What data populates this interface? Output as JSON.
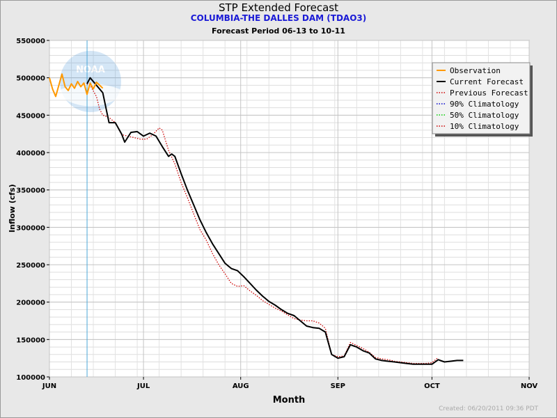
{
  "chart_data": {
    "type": "line",
    "title": "STP Extended Forecast",
    "subtitle": "COLUMBIA-THE DALLES DAM (TDAO3)",
    "period": "Forecast Period 06-13 to 10-11",
    "xlabel": "Month",
    "ylabel": "Inflow (cfs)",
    "ylim": [
      100000,
      550000
    ],
    "yticks": [
      100000,
      150000,
      200000,
      250000,
      300000,
      350000,
      400000,
      450000,
      500000,
      550000
    ],
    "xticks": [
      {
        "label": "JUN",
        "date": "06-01"
      },
      {
        "label": "JUL",
        "date": "07-01"
      },
      {
        "label": "AUG",
        "date": "08-01"
      },
      {
        "label": "SEP",
        "date": "09-01"
      },
      {
        "label": "OCT",
        "date": "10-01"
      },
      {
        "label": "NOV",
        "date": "11-01"
      }
    ],
    "xlim": [
      "06-01",
      "11-01"
    ],
    "grid": true,
    "current_date_marker": "06-13",
    "legend_position": "top-right",
    "series": [
      {
        "name": "Observation",
        "color": "#ff9900",
        "style": "solid",
        "points": [
          [
            "06-01",
            500000
          ],
          [
            "06-02",
            485000
          ],
          [
            "06-03",
            475000
          ],
          [
            "06-04",
            490000
          ],
          [
            "06-05",
            505000
          ],
          [
            "06-06",
            488000
          ],
          [
            "06-07",
            483000
          ],
          [
            "06-08",
            492000
          ],
          [
            "06-09",
            486000
          ],
          [
            "06-10",
            495000
          ],
          [
            "06-11",
            488000
          ],
          [
            "06-12",
            493000
          ],
          [
            "06-13",
            478000
          ],
          [
            "06-14",
            493000
          ],
          [
            "06-15",
            485000
          ],
          [
            "06-16",
            494000
          ],
          [
            "06-17",
            490000
          ],
          [
            "06-18",
            486000
          ]
        ]
      },
      {
        "name": "Current Forecast",
        "color": "#000000",
        "style": "solid",
        "points": [
          [
            "06-13",
            492000
          ],
          [
            "06-14",
            500000
          ],
          [
            "06-16",
            490000
          ],
          [
            "06-18",
            480000
          ],
          [
            "06-20",
            440000
          ],
          [
            "06-22",
            440000
          ],
          [
            "06-24",
            425000
          ],
          [
            "06-25",
            414000
          ],
          [
            "06-27",
            427000
          ],
          [
            "06-29",
            428000
          ],
          [
            "07-01",
            422000
          ],
          [
            "07-03",
            426000
          ],
          [
            "07-05",
            422000
          ],
          [
            "07-07",
            408000
          ],
          [
            "07-09",
            395000
          ],
          [
            "07-10",
            398000
          ],
          [
            "07-11",
            395000
          ],
          [
            "07-13",
            372000
          ],
          [
            "07-15",
            350000
          ],
          [
            "07-17",
            330000
          ],
          [
            "07-19",
            310000
          ],
          [
            "07-21",
            293000
          ],
          [
            "07-23",
            278000
          ],
          [
            "07-25",
            265000
          ],
          [
            "07-27",
            252000
          ],
          [
            "07-29",
            245000
          ],
          [
            "07-31",
            242000
          ],
          [
            "08-02",
            234000
          ],
          [
            "08-04",
            225000
          ],
          [
            "08-06",
            216000
          ],
          [
            "08-08",
            208000
          ],
          [
            "08-10",
            201000
          ],
          [
            "08-12",
            196000
          ],
          [
            "08-14",
            190000
          ],
          [
            "08-16",
            185000
          ],
          [
            "08-18",
            182000
          ],
          [
            "08-20",
            175000
          ],
          [
            "08-22",
            168000
          ],
          [
            "08-24",
            166000
          ],
          [
            "08-26",
            165000
          ],
          [
            "08-28",
            160000
          ],
          [
            "08-30",
            130000
          ],
          [
            "09-01",
            125000
          ],
          [
            "09-03",
            127000
          ],
          [
            "09-05",
            143000
          ],
          [
            "09-07",
            140000
          ],
          [
            "09-09",
            135000
          ],
          [
            "09-11",
            132000
          ],
          [
            "09-13",
            124000
          ],
          [
            "09-15",
            122000
          ],
          [
            "09-17",
            121000
          ],
          [
            "09-19",
            120000
          ],
          [
            "09-21",
            119000
          ],
          [
            "09-23",
            118000
          ],
          [
            "09-25",
            117000
          ],
          [
            "09-27",
            117000
          ],
          [
            "09-29",
            117000
          ],
          [
            "10-01",
            117000
          ],
          [
            "10-03",
            123000
          ],
          [
            "10-05",
            120000
          ],
          [
            "10-07",
            121000
          ],
          [
            "10-09",
            122000
          ],
          [
            "10-11",
            122000
          ]
        ]
      },
      {
        "name": "Previous Forecast",
        "color": "#cc0000",
        "style": "dotted",
        "points": [
          [
            "06-13",
            492000
          ],
          [
            "06-14",
            490000
          ],
          [
            "06-16",
            475000
          ],
          [
            "06-17",
            458000
          ],
          [
            "06-18",
            450000
          ],
          [
            "06-20",
            447000
          ],
          [
            "06-22",
            440000
          ],
          [
            "06-24",
            424000
          ],
          [
            "06-26",
            422000
          ],
          [
            "06-28",
            420000
          ],
          [
            "06-30",
            418000
          ],
          [
            "07-02",
            418000
          ],
          [
            "07-04",
            424000
          ],
          [
            "07-06",
            433000
          ],
          [
            "07-07",
            430000
          ],
          [
            "07-09",
            403000
          ],
          [
            "07-11",
            385000
          ],
          [
            "07-13",
            360000
          ],
          [
            "07-15",
            340000
          ],
          [
            "07-17",
            318000
          ],
          [
            "07-19",
            297000
          ],
          [
            "07-21",
            283000
          ],
          [
            "07-23",
            265000
          ],
          [
            "07-25",
            250000
          ],
          [
            "07-27",
            238000
          ],
          [
            "07-29",
            225000
          ],
          [
            "07-31",
            221000
          ],
          [
            "08-02",
            222000
          ],
          [
            "08-04",
            215000
          ],
          [
            "08-06",
            209000
          ],
          [
            "08-08",
            202000
          ],
          [
            "08-10",
            197000
          ],
          [
            "08-12",
            192000
          ],
          [
            "08-14",
            188000
          ],
          [
            "08-16",
            183000
          ],
          [
            "08-18",
            178000
          ],
          [
            "08-20",
            176000
          ],
          [
            "08-22",
            175000
          ],
          [
            "08-24",
            175000
          ],
          [
            "08-26",
            172000
          ],
          [
            "08-28",
            165000
          ],
          [
            "08-30",
            130000
          ],
          [
            "09-01",
            127000
          ],
          [
            "09-03",
            128000
          ],
          [
            "09-05",
            146000
          ],
          [
            "09-07",
            142000
          ],
          [
            "09-09",
            138000
          ],
          [
            "09-11",
            133000
          ],
          [
            "09-13",
            126000
          ],
          [
            "09-15",
            124000
          ],
          [
            "09-17",
            123000
          ],
          [
            "09-19",
            121000
          ],
          [
            "09-21",
            120000
          ],
          [
            "09-23",
            119000
          ],
          [
            "09-25",
            118000
          ],
          [
            "09-27",
            118000
          ],
          [
            "09-29",
            118000
          ],
          [
            "10-01",
            119000
          ],
          [
            "10-03",
            126000
          ]
        ]
      },
      {
        "name": "90% Climatology",
        "color": "#0000cc",
        "style": "dotted",
        "points": []
      },
      {
        "name": "50% Climatology",
        "color": "#00cc00",
        "style": "dotted",
        "points": []
      },
      {
        "name": "10% Climatology",
        "color": "#cc0000",
        "style": "dotted",
        "points": []
      }
    ]
  },
  "watermark_text": "NOAA",
  "created": "Created: 06/20/2011 09:36 PDT"
}
